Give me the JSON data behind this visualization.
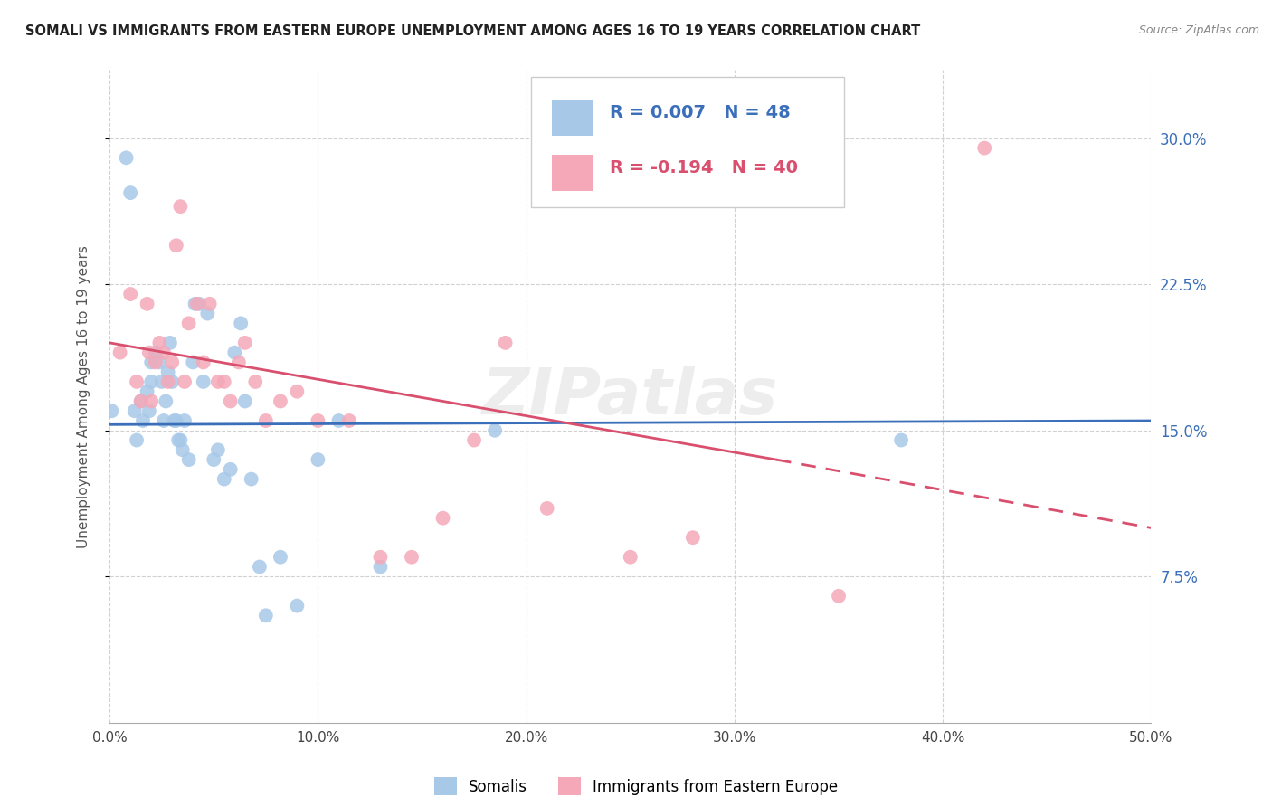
{
  "title": "SOMALI VS IMMIGRANTS FROM EASTERN EUROPE UNEMPLOYMENT AMONG AGES 16 TO 19 YEARS CORRELATION CHART",
  "source": "Source: ZipAtlas.com",
  "ylabel": "Unemployment Among Ages 16 to 19 years",
  "xlabel_somalis": "Somalis",
  "xlabel_eastern": "Immigrants from Eastern Europe",
  "xlim": [
    0.0,
    0.5
  ],
  "ylim": [
    0.0,
    0.335
  ],
  "yticks": [
    0.075,
    0.15,
    0.225,
    0.3
  ],
  "ytick_labels": [
    "7.5%",
    "15.0%",
    "22.5%",
    "30.0%"
  ],
  "xticks": [
    0.0,
    0.1,
    0.2,
    0.3,
    0.4,
    0.5
  ],
  "xtick_labels": [
    "0.0%",
    "10.0%",
    "20.0%",
    "30.0%",
    "40.0%",
    "50.0%"
  ],
  "legend_R_blue": "0.007",
  "legend_N_blue": "48",
  "legend_R_pink": "-0.194",
  "legend_N_pink": "40",
  "blue_color": "#a8c8e8",
  "pink_color": "#f4a8b8",
  "blue_line_color": "#3b6fba",
  "pink_line_color": "#d94f6e",
  "watermark": "ZIPatlas",
  "somali_x": [
    0.001,
    0.008,
    0.01,
    0.012,
    0.013,
    0.015,
    0.016,
    0.018,
    0.019,
    0.02,
    0.02,
    0.022,
    0.024,
    0.025,
    0.026,
    0.027,
    0.028,
    0.029,
    0.03,
    0.031,
    0.032,
    0.033,
    0.034,
    0.035,
    0.036,
    0.038,
    0.04,
    0.041,
    0.043,
    0.045,
    0.047,
    0.05,
    0.052,
    0.055,
    0.058,
    0.06,
    0.063,
    0.065,
    0.068,
    0.072,
    0.075,
    0.082,
    0.09,
    0.1,
    0.11,
    0.13,
    0.185,
    0.38
  ],
  "somali_y": [
    0.16,
    0.29,
    0.272,
    0.16,
    0.145,
    0.165,
    0.155,
    0.17,
    0.16,
    0.175,
    0.185,
    0.19,
    0.185,
    0.175,
    0.155,
    0.165,
    0.18,
    0.195,
    0.175,
    0.155,
    0.155,
    0.145,
    0.145,
    0.14,
    0.155,
    0.135,
    0.185,
    0.215,
    0.215,
    0.175,
    0.21,
    0.135,
    0.14,
    0.125,
    0.13,
    0.19,
    0.205,
    0.165,
    0.125,
    0.08,
    0.055,
    0.085,
    0.06,
    0.135,
    0.155,
    0.08,
    0.15,
    0.145
  ],
  "eastern_x": [
    0.005,
    0.01,
    0.013,
    0.015,
    0.018,
    0.019,
    0.02,
    0.022,
    0.024,
    0.026,
    0.028,
    0.03,
    0.032,
    0.034,
    0.036,
    0.038,
    0.042,
    0.045,
    0.048,
    0.052,
    0.055,
    0.058,
    0.062,
    0.065,
    0.07,
    0.075,
    0.082,
    0.09,
    0.1,
    0.115,
    0.13,
    0.145,
    0.16,
    0.175,
    0.19,
    0.21,
    0.25,
    0.28,
    0.35,
    0.42
  ],
  "eastern_y": [
    0.19,
    0.22,
    0.175,
    0.165,
    0.215,
    0.19,
    0.165,
    0.185,
    0.195,
    0.19,
    0.175,
    0.185,
    0.245,
    0.265,
    0.175,
    0.205,
    0.215,
    0.185,
    0.215,
    0.175,
    0.175,
    0.165,
    0.185,
    0.195,
    0.175,
    0.155,
    0.165,
    0.17,
    0.155,
    0.155,
    0.085,
    0.085,
    0.105,
    0.145,
    0.195,
    0.11,
    0.085,
    0.095,
    0.065,
    0.295
  ],
  "blue_line_y_start": 0.153,
  "blue_line_y_end": 0.155,
  "pink_line_x_solid_start": 0.0,
  "pink_line_x_solid_end": 0.32,
  "pink_line_y_solid_start": 0.195,
  "pink_line_y_solid_end": 0.135,
  "pink_line_x_dash_start": 0.32,
  "pink_line_x_dash_end": 0.5,
  "pink_line_y_dash_start": 0.135,
  "pink_line_y_dash_end": 0.1
}
